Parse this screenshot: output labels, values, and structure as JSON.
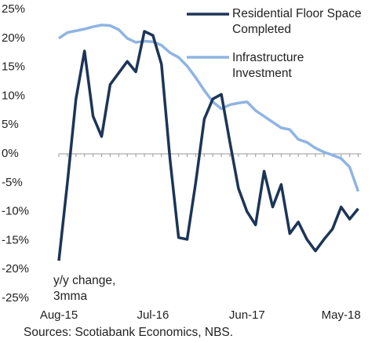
{
  "chart_data": {
    "type": "line",
    "categories": [
      "Aug-15",
      null,
      null,
      null,
      null,
      null,
      null,
      null,
      null,
      null,
      null,
      "Jul-16",
      null,
      null,
      null,
      null,
      null,
      null,
      null,
      null,
      null,
      null,
      "Jun-17",
      null,
      null,
      null,
      null,
      null,
      null,
      null,
      null,
      null,
      null,
      "May-18",
      null,
      null
    ],
    "series": [
      {
        "name": "Residential Floor Space Completed",
        "color": "#1c3557",
        "values": [
          -18.5,
          -5,
          9.5,
          17.8,
          6.5,
          3,
          12,
          14,
          16,
          14.2,
          21.2,
          20.5,
          15.5,
          -1,
          -14.5,
          -14.8,
          -5,
          6,
          9.5,
          10.3,
          2,
          -6,
          -10,
          -12.3,
          -3,
          -9.2,
          -5.3,
          -13.8,
          -11.8,
          -14.8,
          -16.8,
          -14.8,
          -13,
          -9.2,
          -11.3,
          -9.5
        ]
      },
      {
        "name": "Infrastructure Investment",
        "color": "#8fb4e3",
        "values": [
          20,
          21,
          21.3,
          21.6,
          22,
          22.3,
          22.2,
          21.5,
          20,
          19.3,
          19.5,
          19.4,
          18.8,
          17.5,
          16.7,
          15.2,
          13.2,
          11,
          9,
          7.8,
          8.5,
          8.8,
          9,
          7.5,
          6.5,
          5.5,
          4.5,
          4.2,
          2.5,
          2,
          1,
          0.3,
          -0.2,
          -0.8,
          -2.3,
          -6.5
        ]
      }
    ],
    "ylim": [
      -25,
      25
    ],
    "yticks": [
      {
        "value": -25,
        "label": "-25%"
      },
      {
        "value": -20,
        "label": "-20%"
      },
      {
        "value": -15,
        "label": "-15%"
      },
      {
        "value": -10,
        "label": "-10%"
      },
      {
        "value": -5,
        "label": "-5%"
      },
      {
        "value": 0,
        "label": "0%"
      },
      {
        "value": 5,
        "label": "5%"
      },
      {
        "value": 10,
        "label": "10%"
      },
      {
        "value": 15,
        "label": "15%"
      },
      {
        "value": 20,
        "label": "20%"
      },
      {
        "value": 25,
        "label": "25%"
      }
    ],
    "annotation": "y/y change, 3mma",
    "source": "Sources: Scotiabank Economics, NBS."
  }
}
